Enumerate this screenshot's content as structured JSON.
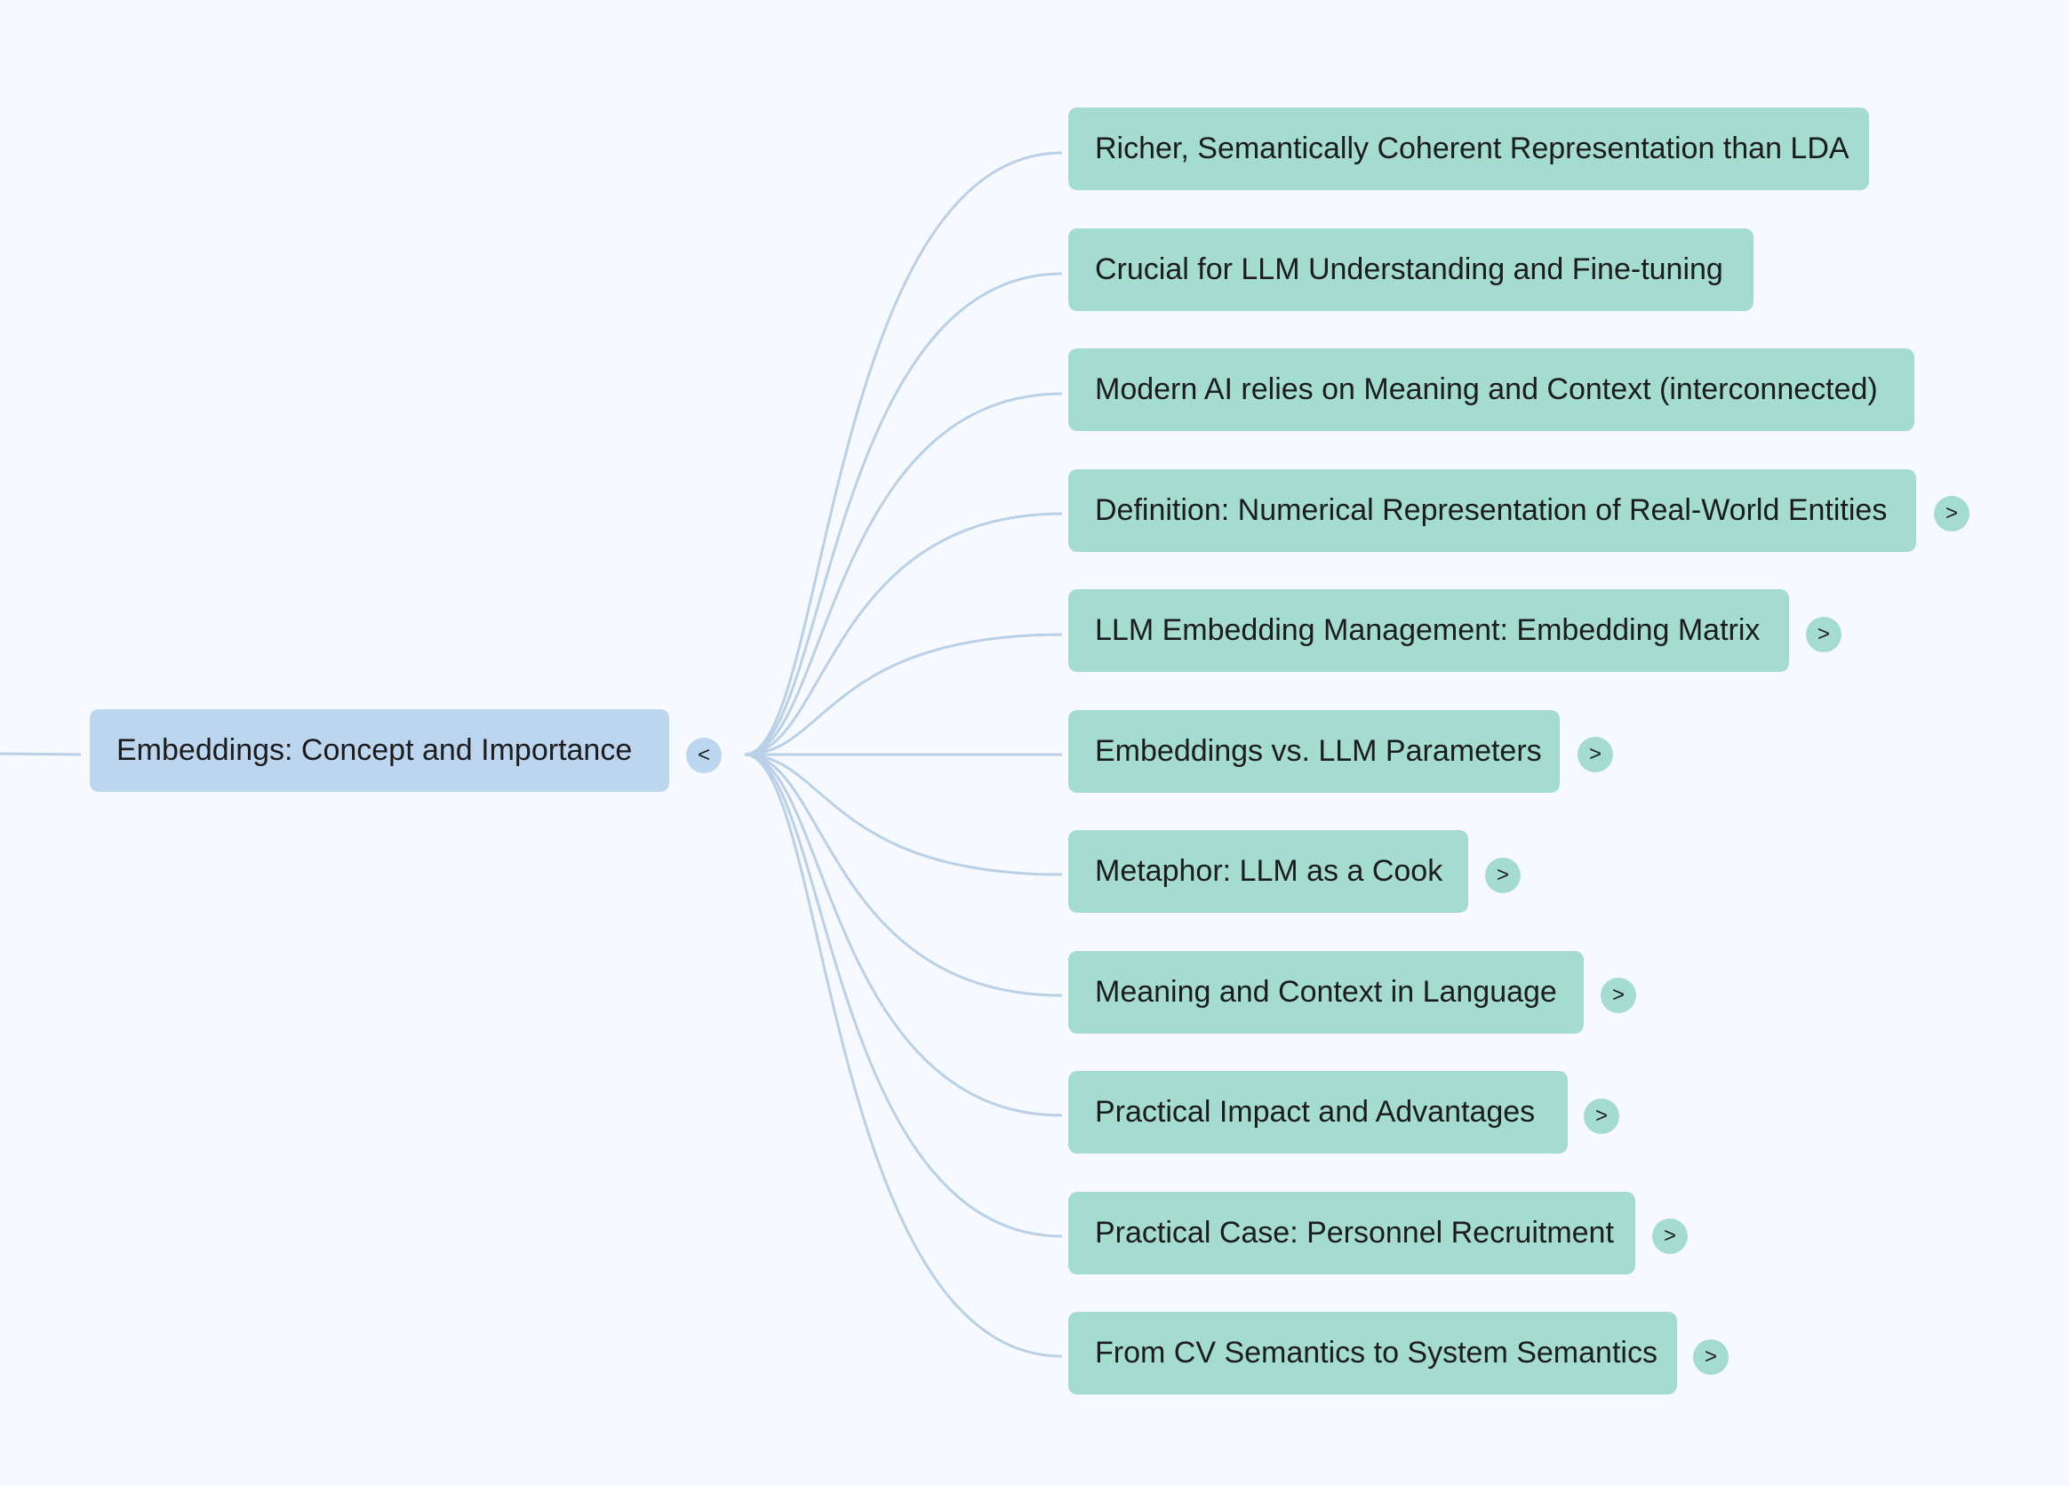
{
  "root": {
    "label": "Embeddings: Concept and Importance",
    "toggle": "<"
  },
  "children": [
    {
      "label": "Richer, Semantically Coherent Representation than LDA",
      "toggle": ""
    },
    {
      "label": "Crucial for LLM Understanding and Fine-tuning",
      "toggle": ""
    },
    {
      "label": "Modern AI relies on Meaning and Context (interconnected)",
      "toggle": ""
    },
    {
      "label": "Definition: Numerical Representation of Real-World Entities",
      "toggle": ">"
    },
    {
      "label": "LLM Embedding Management: Embedding Matrix",
      "toggle": ">"
    },
    {
      "label": "Embeddings vs. LLM Parameters",
      "toggle": ">"
    },
    {
      "label": "Metaphor: LLM as a Cook",
      "toggle": ">"
    },
    {
      "label": "Meaning and Context in Language",
      "toggle": ">"
    },
    {
      "label": "Practical Impact and Advantages",
      "toggle": ">"
    },
    {
      "label": "Practical Case: Personnel Recruitment",
      "toggle": ">"
    },
    {
      "label": "From CV Semantics to System Semantics",
      "toggle": ">"
    }
  ],
  "colors": {
    "background": "#f6f9fd",
    "root_node": "#bcd6f0",
    "child_node": "#a4dcd0",
    "link": "#b9d0e6"
  }
}
